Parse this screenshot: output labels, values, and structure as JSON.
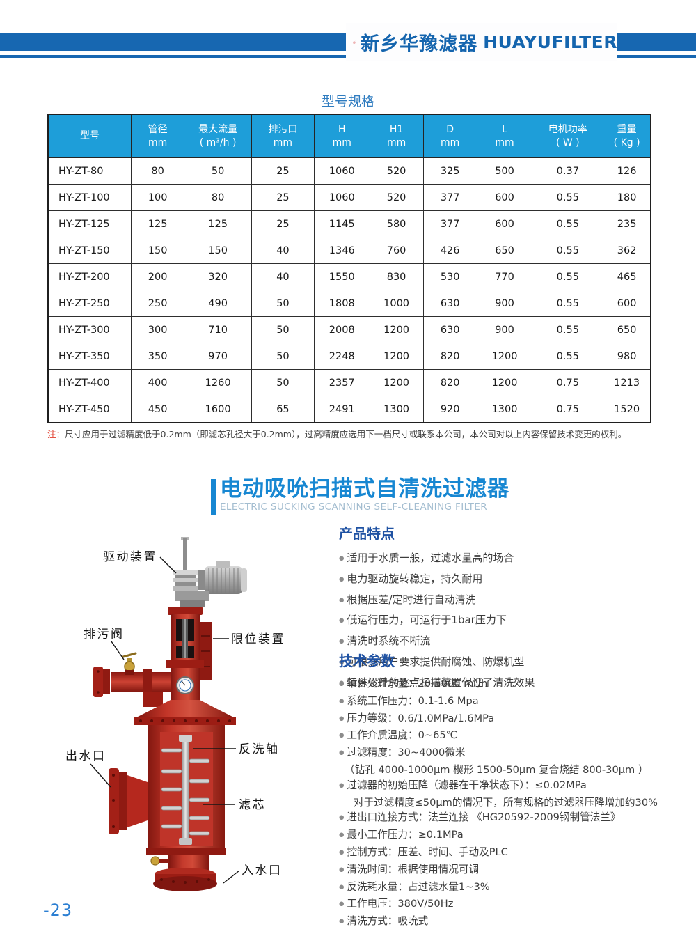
{
  "header": {
    "brand_cn": "新乡华豫滤器",
    "brand_en": "HUAYUFILTER",
    "reg_mark": "®",
    "logo_icon": "huayu-circle-monogram",
    "bar_color": "#1767b1",
    "brand_color": "#1565ae",
    "logo_color": "#cf1d1d"
  },
  "spec_table": {
    "title": "型号规格",
    "header_bg": "#1e9ed9",
    "columns": [
      {
        "label": "型号",
        "unit": ""
      },
      {
        "label": "管径",
        "unit": "mm"
      },
      {
        "label": "最大流量",
        "unit": "( m³/h )"
      },
      {
        "label": "排污口",
        "unit": "mm"
      },
      {
        "label": "H",
        "unit": "mm"
      },
      {
        "label": "H1",
        "unit": "mm"
      },
      {
        "label": "D",
        "unit": "mm"
      },
      {
        "label": "L",
        "unit": "mm"
      },
      {
        "label": "电机功率",
        "unit": "( W )"
      },
      {
        "label": "重量",
        "unit": "( Kg )"
      }
    ],
    "rows": [
      [
        "HY-ZT-80",
        "80",
        "50",
        "25",
        "1060",
        "520",
        "325",
        "500",
        "0.37",
        "126"
      ],
      [
        "HY-ZT-100",
        "100",
        "80",
        "25",
        "1060",
        "520",
        "377",
        "600",
        "0.55",
        "180"
      ],
      [
        "HY-ZT-125",
        "125",
        "125",
        "25",
        "1145",
        "580",
        "377",
        "600",
        "0.55",
        "235"
      ],
      [
        "HY-ZT-150",
        "150",
        "150",
        "40",
        "1346",
        "760",
        "426",
        "650",
        "0.55",
        "362"
      ],
      [
        "HY-ZT-200",
        "200",
        "320",
        "40",
        "1550",
        "830",
        "530",
        "770",
        "0.55",
        "465"
      ],
      [
        "HY-ZT-250",
        "250",
        "490",
        "50",
        "1808",
        "1000",
        "630",
        "900",
        "0.55",
        "600"
      ],
      [
        "HY-ZT-300",
        "300",
        "710",
        "50",
        "2008",
        "1200",
        "630",
        "900",
        "0.55",
        "650"
      ],
      [
        "HY-ZT-350",
        "350",
        "970",
        "50",
        "2248",
        "1200",
        "820",
        "1200",
        "0.55",
        "980"
      ],
      [
        "HY-ZT-400",
        "400",
        "1260",
        "50",
        "2357",
        "1200",
        "820",
        "1200",
        "0.75",
        "1213"
      ],
      [
        "HY-ZT-450",
        "450",
        "1600",
        "65",
        "2491",
        "1300",
        "920",
        "1300",
        "0.75",
        "1520"
      ]
    ]
  },
  "note": {
    "prefix": "注：",
    "text": "尺寸应用于过滤精度低于0.2mm（即滤芯孔径大于0.2mm），过高精度应选用下一档尺寸或联系本公司，本公司对以上内容保留技术变更的权利。"
  },
  "section": {
    "title_cn": "电动吸吮扫描式自清洗过滤器",
    "title_en": "ELECTRIC SUCKING SCANNING SELF-CLEANING FILTER",
    "accent_color": "#1787d2"
  },
  "diagram": {
    "labels": {
      "drive": "驱动装置",
      "drain_valve": "排污阀",
      "limit": "限位装置",
      "outlet": "出水口",
      "backwash_shaft": "反洗轴",
      "filter_element": "滤芯",
      "inlet": "入水口"
    },
    "machine_color": "#b5281e"
  },
  "features": {
    "heading": "产品特点",
    "items": [
      "适用于水质一般，过滤水量高的场合",
      "电力驱动旋转稳定，持久耐用",
      "根据压差/定时进行自动清洗",
      "低运行压力，可运行于1bar压力下",
      "清洗时系统不断流",
      "可根据用户要求提供耐腐蚀、防爆机型",
      "特殊设计的逐点扫描装置保证了清洗效果"
    ]
  },
  "parameters": {
    "heading": "技术参数",
    "items": [
      {
        "text": "单台处理水量：20-5000 m³/h",
        "bullet": true,
        "indent": 0
      },
      {
        "text": "系统工作压力：0.1-1.6 Mpa",
        "bullet": true,
        "indent": 0
      },
      {
        "text": "压力等级：0.6/1.0MPa/1.6MPa",
        "bullet": true,
        "indent": 0
      },
      {
        "text": "工作介质温度：0~65℃",
        "bullet": true,
        "indent": 0
      },
      {
        "text": "过滤精度：30~4000微米",
        "bullet": true,
        "indent": 0
      },
      {
        "text": "（钻孔 4000-1000μm  楔形 1500-50μm  复合烧结 800-30μm ）",
        "bullet": false,
        "indent": 1
      },
      {
        "text": "过滤器的初始压降（滤器在干净状态下）：≤0.02MPa",
        "bullet": true,
        "indent": 0
      },
      {
        "text": "对于过滤精度≤50μm的情况下，所有规格的过滤器压降增加约30%",
        "bullet": false,
        "indent": 2
      },
      {
        "text": "进出口连接方式：法兰连接  《HG20592-2009钢制管法兰》",
        "bullet": true,
        "indent": 0
      },
      {
        "text": "最小工作压力：≥0.1MPa",
        "bullet": true,
        "indent": 0
      },
      {
        "text": "控制方式：压差、时间、手动及PLC",
        "bullet": true,
        "indent": 0
      },
      {
        "text": "清洗时间：根据使用情况可调",
        "bullet": true,
        "indent": 0
      },
      {
        "text": "反洗耗水量：占过滤水量1~3%",
        "bullet": true,
        "indent": 0
      },
      {
        "text": "工作电压：380V/50Hz",
        "bullet": true,
        "indent": 0
      },
      {
        "text": "清洗方式：吸吮式",
        "bullet": true,
        "indent": 0
      }
    ]
  },
  "footer": {
    "page_number": "-23"
  }
}
